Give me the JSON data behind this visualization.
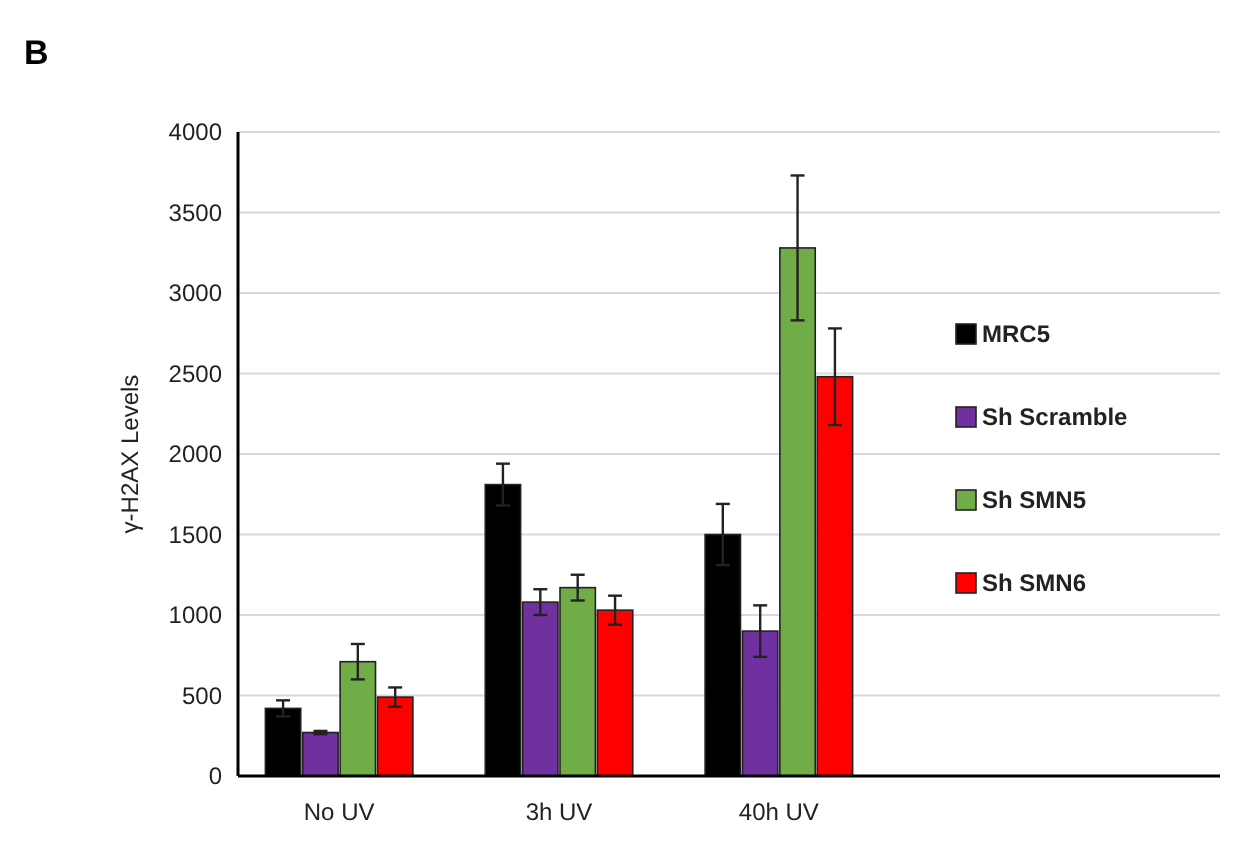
{
  "chart_data": {
    "type": "bar",
    "title": "B",
    "ylabel": "γ-H2AX  Levels",
    "categories": [
      "No UV",
      "3h UV",
      "40h UV"
    ],
    "series": [
      {
        "name": "MRC5",
        "color": "#000000",
        "values": [
          420,
          1810,
          1500
        ],
        "errors": [
          50,
          130,
          190
        ]
      },
      {
        "name": "Sh Scramble",
        "color": "#7030a0",
        "values": [
          270,
          1080,
          900
        ],
        "errors": [
          10,
          80,
          160
        ]
      },
      {
        "name": "Sh SMN5",
        "color": "#70ad47",
        "values": [
          710,
          1170,
          3280
        ],
        "errors": [
          110,
          80,
          450
        ]
      },
      {
        "name": "Sh SMN6",
        "color": "#ff0000",
        "values": [
          490,
          1030,
          2480
        ],
        "errors": [
          60,
          90,
          300
        ]
      }
    ],
    "ylim": [
      0,
      4000
    ],
    "yticks": [
      0,
      500,
      1000,
      1500,
      2000,
      2500,
      3000,
      3500,
      4000
    ],
    "grid": "y",
    "legend": "right"
  }
}
